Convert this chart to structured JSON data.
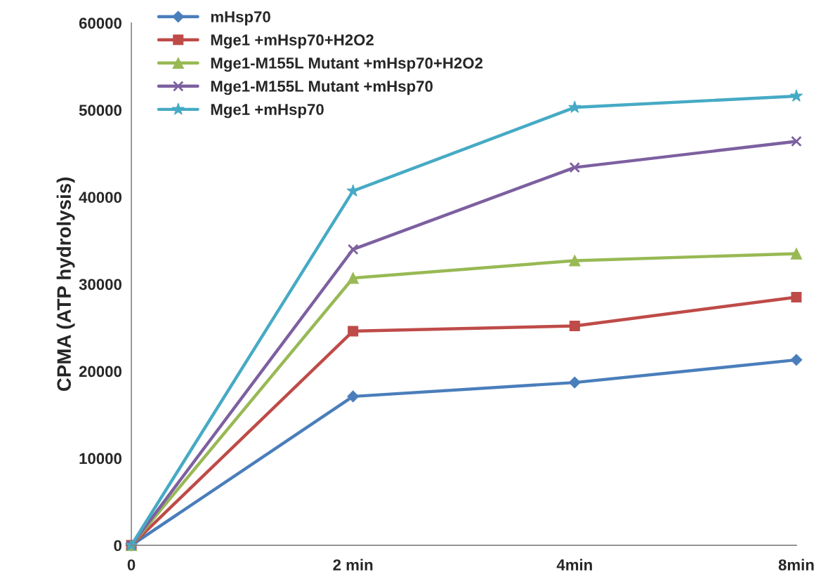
{
  "chart_data": {
    "type": "line",
    "ylabel": "CPMA (ATP hydrolysis)",
    "categories": [
      "0",
      "2 min",
      "4min",
      "8min"
    ],
    "ylim": [
      0,
      60000
    ],
    "yticks": [
      0,
      10000,
      20000,
      30000,
      40000,
      50000,
      60000
    ],
    "grid": false,
    "legend": "top left",
    "line_style": "solid",
    "series": [
      {
        "name": "mHsp70",
        "color": "#4a7ebb",
        "marker": "diamond",
        "values": [
          0,
          17100,
          18700,
          21300
        ]
      },
      {
        "name": "Mge1 +mHsp70+H2O2",
        "color": "#be4b48",
        "marker": "square",
        "values": [
          0,
          24600,
          25200,
          28500
        ]
      },
      {
        "name": "Mge1-M155L Mutant +mHsp70+H2O2",
        "color": "#98b954",
        "marker": "triangle",
        "values": [
          0,
          30700,
          32700,
          33500
        ]
      },
      {
        "name": "Mge1-M155L Mutant +mHsp70",
        "color": "#7d60a0",
        "marker": "cross",
        "values": [
          0,
          34000,
          43400,
          46400
        ]
      },
      {
        "name": "Mge1 +mHsp70",
        "color": "#46aac5",
        "marker": "star",
        "values": [
          0,
          40700,
          50300,
          51600
        ]
      }
    ]
  }
}
